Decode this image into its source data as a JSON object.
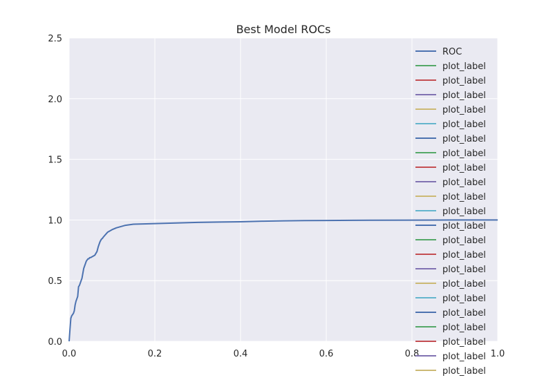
{
  "chart_data": {
    "type": "line",
    "title": "Best Model ROCs",
    "xlabel": "",
    "ylabel": "",
    "xlim": [
      0,
      1
    ],
    "ylim": [
      0,
      2.5
    ],
    "xticks": [
      "0.0",
      "0.2",
      "0.4",
      "0.6",
      "0.8",
      "1.0"
    ],
    "yticks": [
      "0.0",
      "0.5",
      "1.0",
      "1.5",
      "2.0",
      "2.5"
    ],
    "grid": true,
    "legend_position": "top-right",
    "series": [
      {
        "name": "ROC",
        "color": "#4c72b0",
        "x": [
          0.0,
          0.002,
          0.004,
          0.006,
          0.008,
          0.01,
          0.012,
          0.014,
          0.016,
          0.018,
          0.02,
          0.022,
          0.024,
          0.026,
          0.028,
          0.03,
          0.032,
          0.034,
          0.036,
          0.038,
          0.04,
          0.042,
          0.044,
          0.046,
          0.048,
          0.05,
          0.055,
          0.06,
          0.065,
          0.068,
          0.07,
          0.072,
          0.075,
          0.078,
          0.08,
          0.085,
          0.09,
          0.095,
          0.1,
          0.11,
          0.12,
          0.13,
          0.15,
          0.18,
          0.2,
          0.25,
          0.3,
          0.35,
          0.4,
          0.45,
          0.5,
          0.55,
          0.6,
          0.7,
          0.8,
          0.9,
          1.0
        ],
        "y": [
          0.0,
          0.1,
          0.19,
          0.21,
          0.22,
          0.23,
          0.25,
          0.3,
          0.33,
          0.35,
          0.37,
          0.45,
          0.46,
          0.48,
          0.5,
          0.52,
          0.56,
          0.6,
          0.62,
          0.64,
          0.66,
          0.67,
          0.68,
          0.68,
          0.69,
          0.69,
          0.7,
          0.71,
          0.74,
          0.78,
          0.8,
          0.82,
          0.84,
          0.85,
          0.86,
          0.88,
          0.9,
          0.91,
          0.92,
          0.935,
          0.945,
          0.955,
          0.965,
          0.968,
          0.97,
          0.975,
          0.98,
          0.983,
          0.985,
          0.99,
          0.993,
          0.995,
          0.996,
          0.998,
          0.999,
          1.0,
          1.0
        ]
      }
    ],
    "extra_legend_entries": [
      {
        "name": "plot_label",
        "color": "#55a868"
      },
      {
        "name": "plot_label",
        "color": "#c44e52"
      },
      {
        "name": "plot_label",
        "color": "#8172b2"
      },
      {
        "name": "plot_label",
        "color": "#ccb974"
      },
      {
        "name": "plot_label",
        "color": "#64b5cd"
      },
      {
        "name": "plot_label",
        "color": "#4c72b0"
      },
      {
        "name": "plot_label",
        "color": "#55a868"
      },
      {
        "name": "plot_label",
        "color": "#c44e52"
      },
      {
        "name": "plot_label",
        "color": "#8172b2"
      },
      {
        "name": "plot_label",
        "color": "#ccb974"
      },
      {
        "name": "plot_label",
        "color": "#64b5cd"
      },
      {
        "name": "plot_label",
        "color": "#4c72b0"
      },
      {
        "name": "plot_label",
        "color": "#55a868"
      },
      {
        "name": "plot_label",
        "color": "#c44e52"
      },
      {
        "name": "plot_label",
        "color": "#8172b2"
      },
      {
        "name": "plot_label",
        "color": "#ccb974"
      },
      {
        "name": "plot_label",
        "color": "#64b5cd"
      },
      {
        "name": "plot_label",
        "color": "#4c72b0"
      },
      {
        "name": "plot_label",
        "color": "#55a868"
      },
      {
        "name": "plot_label",
        "color": "#c44e52"
      },
      {
        "name": "plot_label",
        "color": "#8172b2"
      },
      {
        "name": "plot_label",
        "color": "#ccb974"
      }
    ],
    "colors": {
      "plot_background": "#eaeaf2",
      "grid": "#ffffff",
      "text": "#262626"
    }
  }
}
